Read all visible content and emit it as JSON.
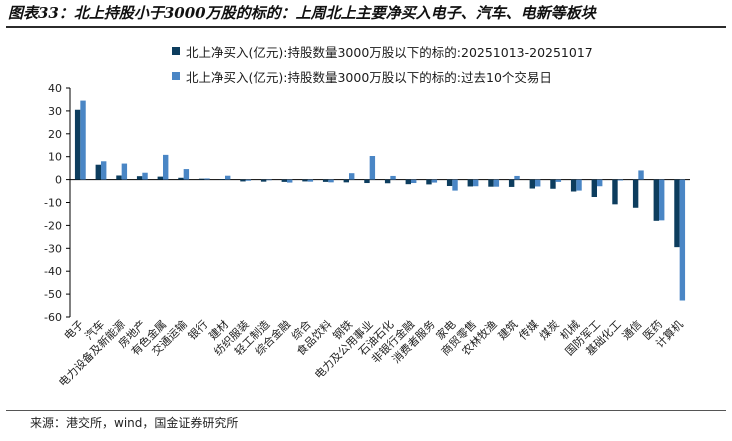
{
  "header": {
    "title": "图表33：北上持股小于3000万股的标的：上周北上主要净买入电子、汽车、电新等板块"
  },
  "footer": {
    "source": "来源：港交所，wind，国金证券研究所"
  },
  "colors": {
    "series1": "#0d3d5e",
    "series2": "#4a86c5"
  },
  "chart_data": {
    "type": "bar",
    "title": "",
    "xlabel": "",
    "ylabel": "",
    "ylim": [
      -60,
      40
    ],
    "yticks": [
      40,
      30,
      20,
      10,
      0,
      -10,
      -20,
      -30,
      -40,
      -50,
      -60
    ],
    "grid": false,
    "legend_position": "top",
    "categories": [
      "电子",
      "汽车",
      "电力设备及新能源",
      "房地产",
      "有色金属",
      "交通运输",
      "银行",
      "建材",
      "纺织服装",
      "轻工制造",
      "综合金融",
      "综合",
      "食品饮料",
      "钢铁",
      "电力及公用事业",
      "石油石化",
      "非银行金融",
      "消费者服务",
      "家电",
      "商贸零售",
      "农林牧渔",
      "建筑",
      "传媒",
      "煤炭",
      "机械",
      "国防军工",
      "基础化工",
      "通信",
      "医药",
      "计算机"
    ],
    "series": [
      {
        "name": "北上净买入(亿元):持股数量3000万股以下的标的:20251013-20251017",
        "values": [
          30.5,
          6.5,
          1.8,
          1.5,
          1.3,
          0.8,
          0.4,
          0.2,
          -0.8,
          -0.9,
          -1.0,
          -0.8,
          -1.0,
          -1.2,
          -1.5,
          -1.6,
          -2.0,
          -2.1,
          -2.8,
          -3.0,
          -3.1,
          -3.2,
          -3.9,
          -4.0,
          -5.2,
          -7.6,
          -10.8,
          -12.3,
          -18.0,
          -29.5
        ]
      },
      {
        "name": "北上净买入(亿元):持股数量3000万股以下的标的:过去10个交易日",
        "values": [
          34.5,
          8.0,
          7.0,
          3.0,
          10.8,
          4.6,
          0.5,
          1.7,
          -0.5,
          -0.3,
          -1.3,
          -0.9,
          -1.2,
          2.8,
          10.3,
          1.6,
          -1.5,
          -1.3,
          -4.8,
          -2.9,
          -3.1,
          1.6,
          -3.0,
          -1.0,
          -4.8,
          -2.9,
          -0.4,
          4.0,
          -17.8,
          -52.8
        ]
      }
    ]
  }
}
